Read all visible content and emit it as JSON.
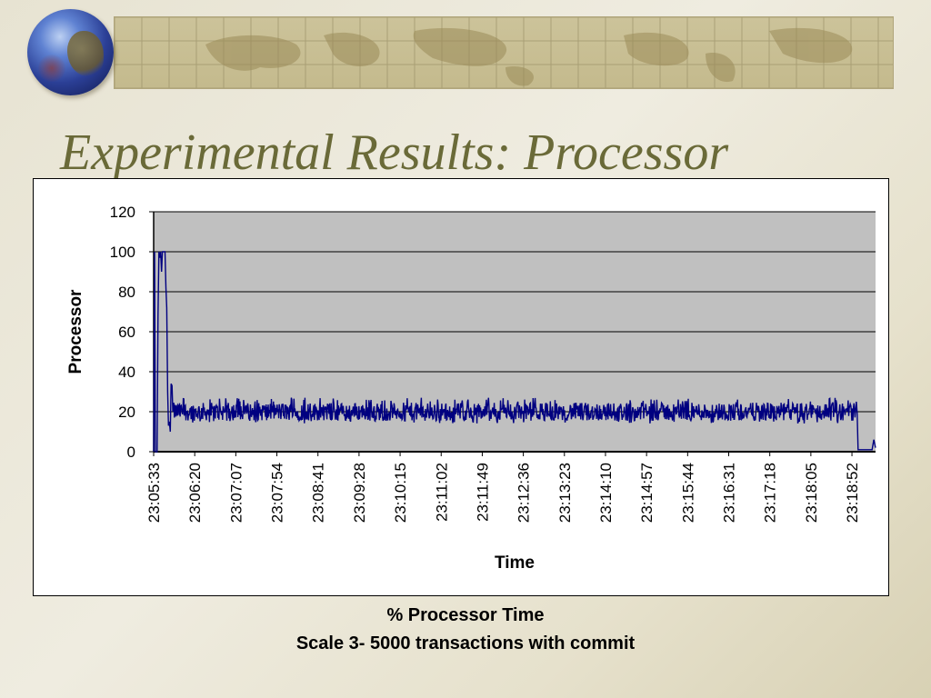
{
  "slide": {
    "title": "Experimental Results: Processor",
    "caption_line1": "% Processor Time",
    "caption_line2": "Scale 3- 5000 transactions with commit"
  },
  "colors": {
    "series": "#000080",
    "plot_background": "#c0c0c0",
    "title": "#6a6a38"
  },
  "chart_data": {
    "type": "line",
    "xlabel": "Time",
    "ylabel": "Processor",
    "ylim": [
      0,
      120
    ],
    "yticks": [
      0,
      20,
      40,
      60,
      80,
      100,
      120
    ],
    "grid": true,
    "legend": "none",
    "x_start": "23:05:33",
    "x_end": "23:19:19",
    "x_tick_labels": [
      "23:05:33",
      "23:06:20",
      "23:07:07",
      "23:07:54",
      "23:08:41",
      "23:09:28",
      "23:10:15",
      "23:11:02",
      "23:11:49",
      "23:12:36",
      "23:13:23",
      "23:14:10",
      "23:14:57",
      "23:15:44",
      "23:16:31",
      "23:17:18",
      "23:18:05",
      "23:18:52"
    ],
    "series": [
      {
        "values_key_points": [
          [
            "23:05:33",
            0
          ],
          [
            "23:05:34",
            100
          ],
          [
            "23:05:35",
            0
          ],
          [
            "23:05:37",
            0
          ],
          [
            "23:05:38",
            68
          ],
          [
            "23:05:39",
            100
          ],
          [
            "23:05:40",
            97
          ],
          [
            "23:05:41",
            100
          ],
          [
            "23:05:42",
            90
          ],
          [
            "23:05:43",
            100
          ],
          [
            "23:05:46",
            100
          ],
          [
            "23:05:47",
            82
          ],
          [
            "23:05:48",
            72
          ],
          [
            "23:05:49",
            30
          ],
          [
            "23:05:50",
            13
          ],
          [
            "23:05:51",
            15
          ],
          [
            "23:05:52",
            10
          ],
          [
            "23:05:53",
            34
          ],
          [
            "23:05:54",
            33
          ],
          [
            "23:05:55",
            20
          ],
          [
            "23:18:56",
            20
          ],
          [
            "23:18:57",
            25
          ],
          [
            "23:18:58",
            19
          ],
          [
            "23:18:59",
            1
          ],
          [
            "23:19:15",
            1
          ],
          [
            "23:19:17",
            6
          ],
          [
            "23:19:19",
            2
          ]
        ],
        "steady_level": 20,
        "steady_range": [
          14,
          27
        ]
      }
    ]
  }
}
